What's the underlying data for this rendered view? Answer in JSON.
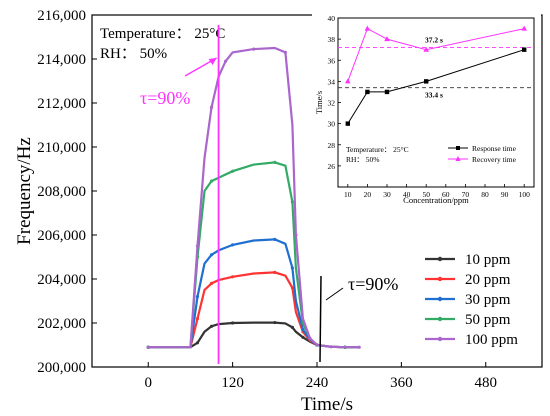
{
  "chart_data": [
    {
      "type": "line",
      "xlabel": "Time/s",
      "ylabel": "Frequency/Hz",
      "xlim": [
        -80,
        560
      ],
      "ylim": [
        200000,
        216000
      ],
      "xticks": [
        0,
        120,
        240,
        360,
        480
      ],
      "yticks": [
        200000,
        202000,
        204000,
        206000,
        208000,
        210000,
        212000,
        214000,
        216000
      ],
      "ytick_labels": [
        "200,000",
        "202,000",
        "204,000",
        "206,000",
        "208,000",
        "210,000",
        "212,000",
        "214,000",
        "216,000"
      ],
      "conditions": [
        "Temperature： 25°C",
        "RH： 50%"
      ],
      "legend_position": "lower-right",
      "annotations": [
        {
          "text": "τ=90%",
          "color": "#ff33ff",
          "at_x": 100
        },
        {
          "text": "τ=90%",
          "color": "#000000",
          "at_x": 225
        }
      ],
      "series": [
        {
          "name": "10 ppm",
          "color": "#333333",
          "x": [
            0,
            60,
            70,
            80,
            90,
            100,
            120,
            150,
            180,
            195,
            205,
            210,
            220,
            230,
            240,
            260,
            280,
            300
          ],
          "y": [
            200900,
            200900,
            201100,
            201600,
            201850,
            201950,
            202000,
            202020,
            202020,
            201980,
            201800,
            201600,
            201350,
            201150,
            201000,
            200920,
            200900,
            200900
          ]
        },
        {
          "name": "20 ppm",
          "color": "#ff3333",
          "x": [
            0,
            60,
            70,
            80,
            90,
            100,
            120,
            150,
            180,
            195,
            205,
            210,
            220,
            230,
            240,
            260,
            280,
            300
          ],
          "y": [
            200900,
            200900,
            202200,
            203500,
            203800,
            203950,
            204100,
            204250,
            204300,
            204150,
            203600,
            202500,
            201600,
            201200,
            201000,
            200920,
            200900,
            200900
          ]
        },
        {
          "name": "30 ppm",
          "color": "#1f6fd1",
          "x": [
            0,
            60,
            70,
            80,
            90,
            100,
            120,
            150,
            180,
            195,
            205,
            210,
            220,
            230,
            240,
            260,
            280,
            300
          ],
          "y": [
            200900,
            200900,
            203200,
            204700,
            205100,
            205300,
            205550,
            205750,
            205800,
            205600,
            204500,
            203000,
            201700,
            201250,
            201000,
            200920,
            200900,
            200900
          ]
        },
        {
          "name": "50 ppm",
          "color": "#33aa66",
          "x": [
            0,
            60,
            70,
            80,
            90,
            100,
            120,
            150,
            180,
            195,
            205,
            210,
            220,
            230,
            240,
            260,
            280,
            300
          ],
          "y": [
            200900,
            200900,
            205000,
            208000,
            208450,
            208600,
            208900,
            209200,
            209300,
            209150,
            207500,
            204500,
            202000,
            201300,
            201000,
            200920,
            200900,
            200900
          ]
        },
        {
          "name": "100 ppm",
          "color": "#aa66cc",
          "x": [
            0,
            60,
            70,
            80,
            90,
            100,
            110,
            120,
            150,
            180,
            195,
            205,
            210,
            220,
            230,
            240,
            260,
            280,
            300
          ],
          "y": [
            200900,
            200900,
            205500,
            209500,
            211800,
            213200,
            213900,
            214300,
            214450,
            214500,
            214300,
            211000,
            206000,
            202200,
            201300,
            201000,
            200920,
            200900,
            200900
          ]
        }
      ]
    },
    {
      "type": "line",
      "xlabel": "Concentration/ppm",
      "ylabel": "Time/s",
      "xlim": [
        5,
        105
      ],
      "ylim": [
        24,
        40
      ],
      "xticks": [
        10,
        20,
        30,
        40,
        50,
        60,
        70,
        80,
        90,
        100
      ],
      "yticks": [
        26,
        28,
        30,
        32,
        34,
        36,
        38,
        40
      ],
      "conditions": [
        "Temperature： 25°C",
        "RH： 50%"
      ],
      "legend_position": "lower-right",
      "reference_lines": [
        {
          "value": 37.2,
          "label": "37.2 s",
          "color": "#ff33ff"
        },
        {
          "value": 33.4,
          "label": "33.4 s",
          "color": "#333333"
        }
      ],
      "series": [
        {
          "name": "Response time",
          "color": "#000000",
          "marker": "square",
          "x": [
            10,
            20,
            30,
            50,
            100
          ],
          "y": [
            30,
            33,
            33,
            34,
            37
          ]
        },
        {
          "name": "Recovery time",
          "color": "#ff33ff",
          "marker": "triangle",
          "x": [
            10,
            20,
            30,
            50,
            100
          ],
          "y": [
            34,
            39,
            38,
            37,
            39
          ]
        }
      ]
    }
  ]
}
